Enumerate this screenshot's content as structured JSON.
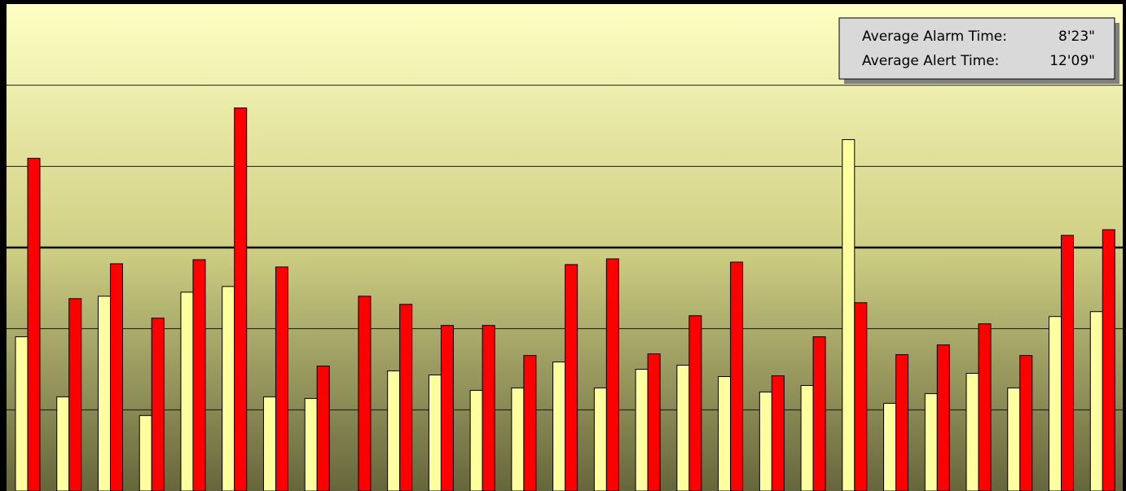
{
  "chart_data": {
    "type": "bar",
    "annotations": [
      {
        "label": "Average Alarm Time:",
        "value": "8'23\""
      },
      {
        "label": "Average Alert Time:",
        "value": "12'09\""
      }
    ],
    "categories": [
      null,
      null,
      null,
      null,
      null,
      null,
      null,
      null,
      null,
      null,
      null,
      null,
      null,
      null,
      null,
      null,
      null,
      null,
      null,
      null,
      null,
      null,
      null,
      null,
      null,
      null,
      null
    ],
    "series": [
      {
        "color": "#ffffa0",
        "values": [
          1.9,
          1.16,
          2.4,
          0.93,
          2.45,
          2.52,
          1.16,
          1.14,
          0,
          1.48,
          1.43,
          1.24,
          1.27,
          1.59,
          1.27,
          1.5,
          1.55,
          1.41,
          1.22,
          1.3,
          4.33,
          1.08,
          1.2,
          1.45,
          1.27,
          2.15,
          2.21
        ]
      },
      {
        "color": "#ff0000",
        "values": [
          4.1,
          2.37,
          2.8,
          2.13,
          2.85,
          4.72,
          2.76,
          1.54,
          2.4,
          2.3,
          2.04,
          2.04,
          1.67,
          2.79,
          2.86,
          1.69,
          2.16,
          2.82,
          1.42,
          1.9,
          2.32,
          1.68,
          1.8,
          2.06,
          1.67,
          3.15,
          3.22
        ]
      }
    ],
    "ylim": [
      0,
      6
    ],
    "yticks": [
      1,
      2,
      3,
      4,
      5
    ],
    "reference_line": 3,
    "grid": true
  }
}
